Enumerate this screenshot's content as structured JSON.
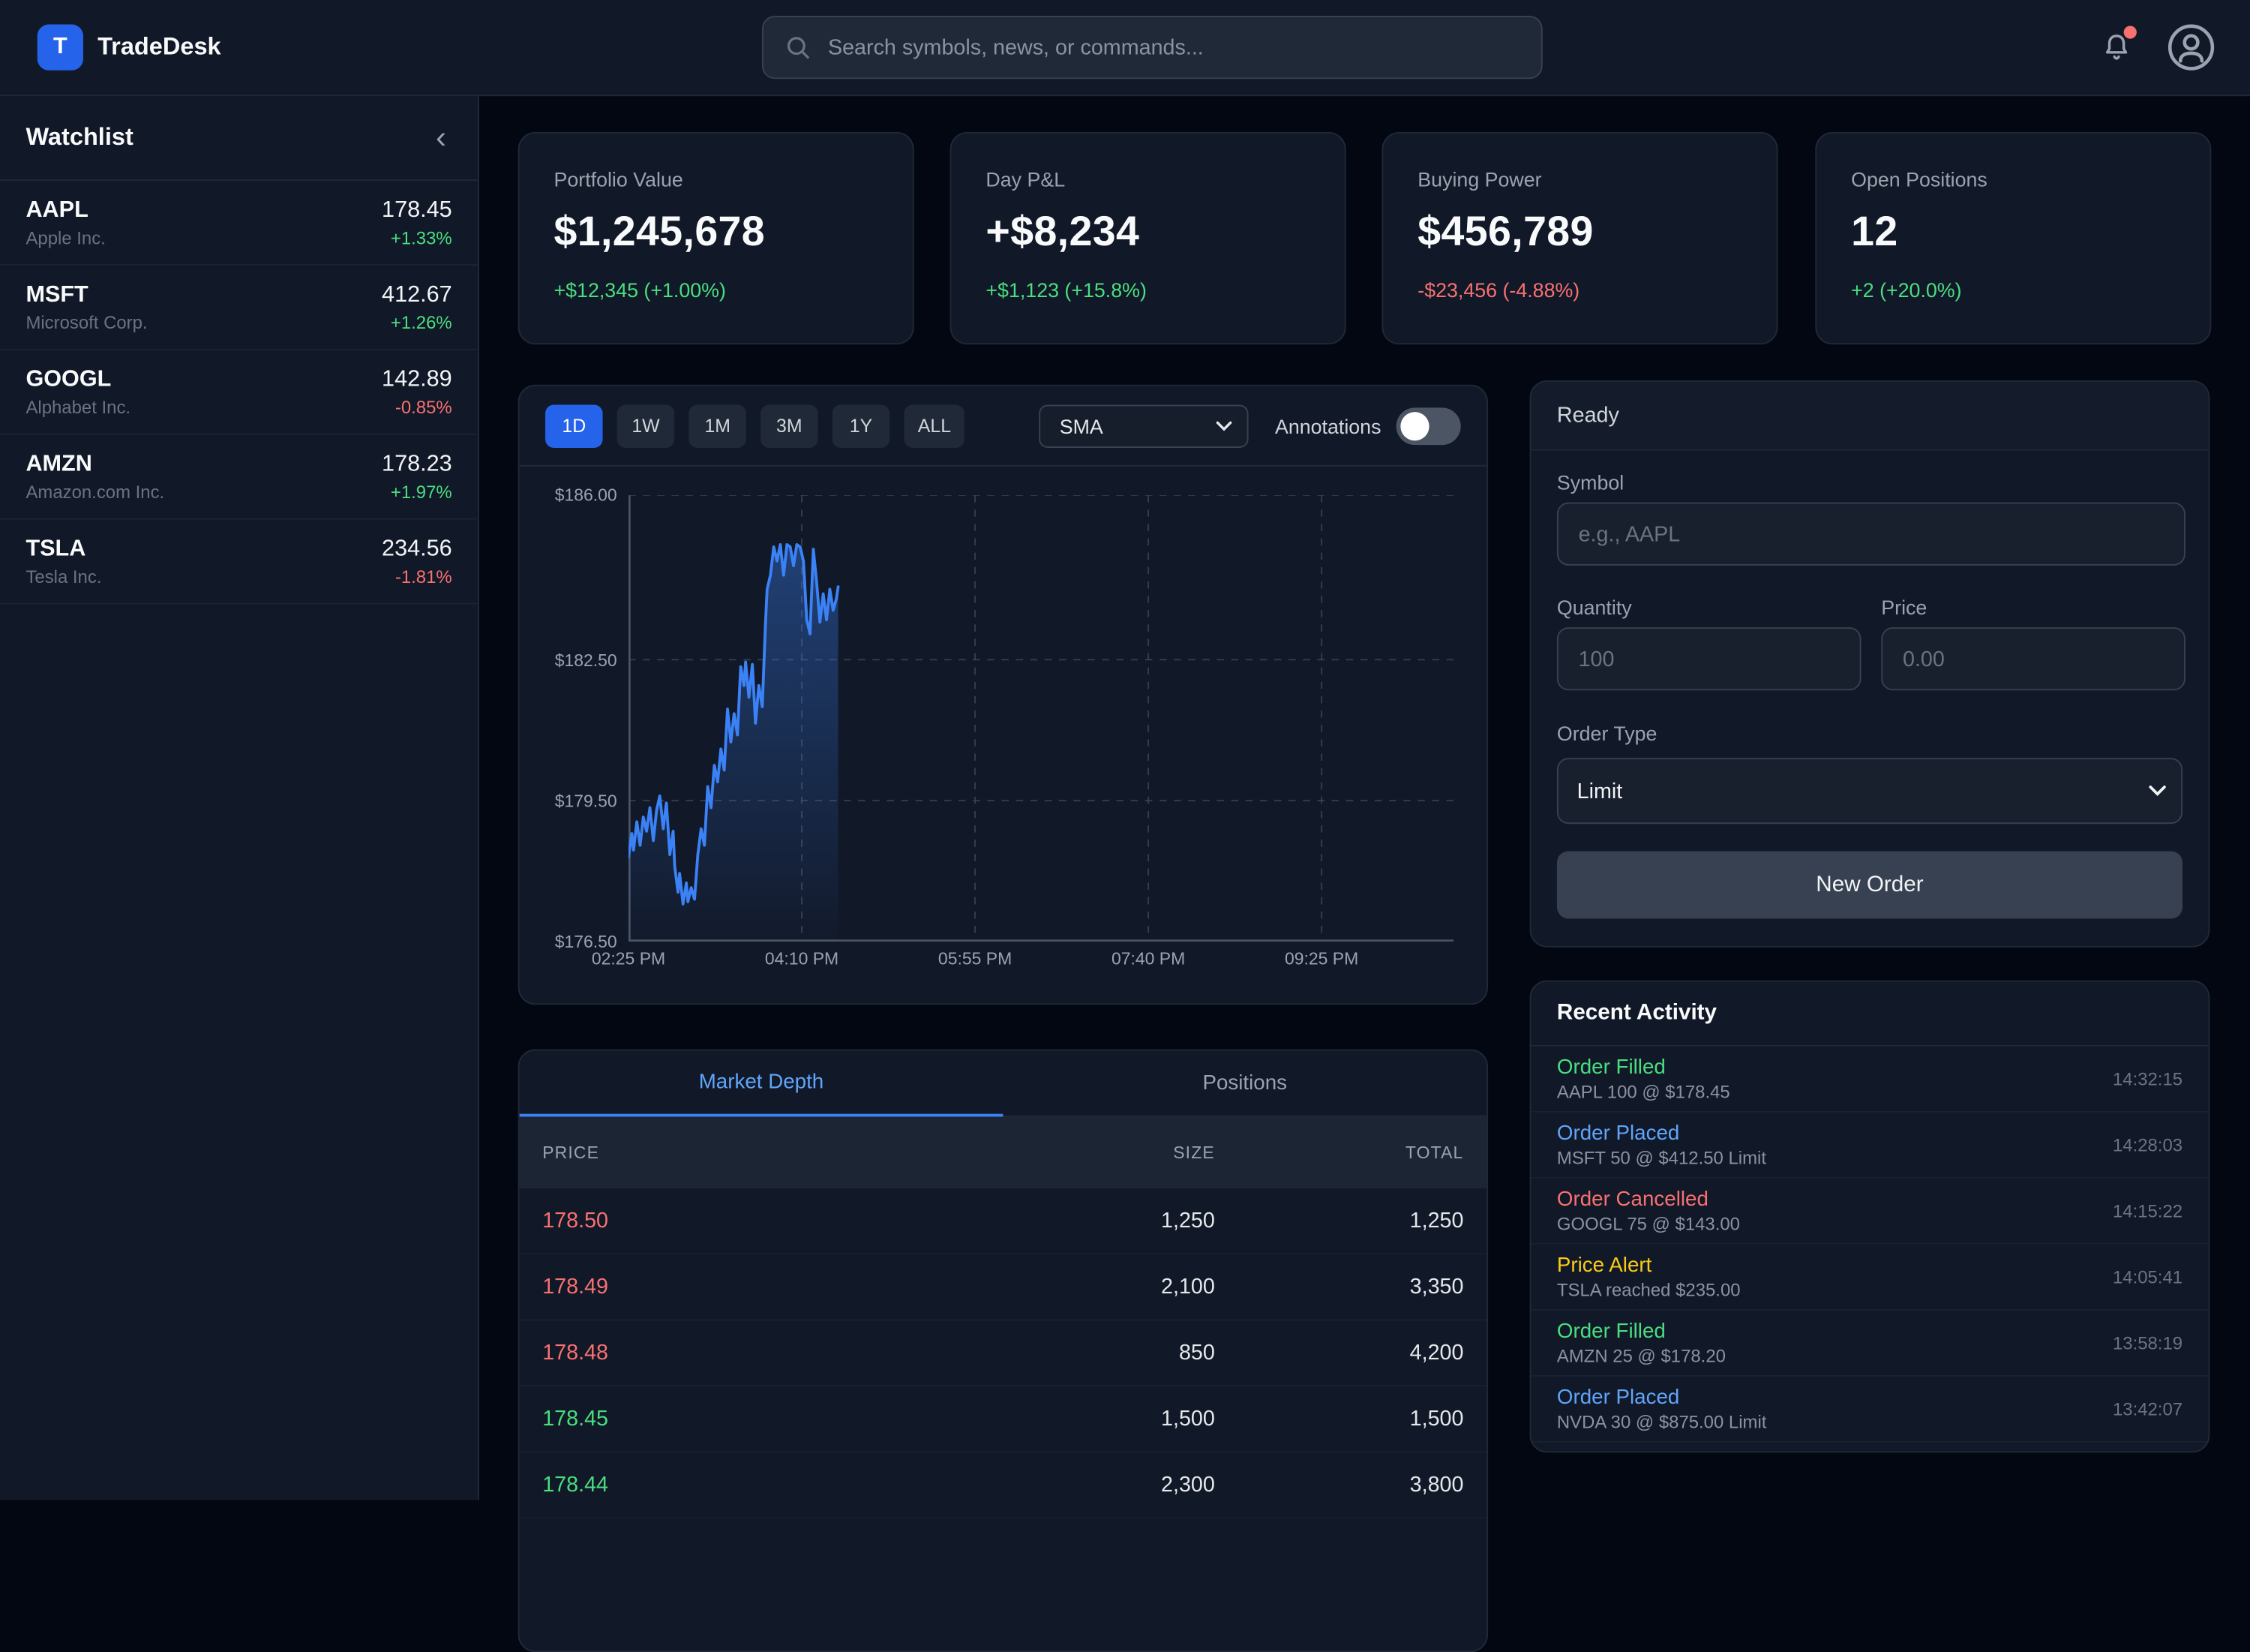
{
  "topbar": {
    "logo_letter": "T",
    "app_name": "TradeDesk",
    "search_placeholder": "Search symbols, news, or commands...",
    "notification_badge": true
  },
  "sidebar": {
    "title": "Watchlist",
    "collapse_icon": "‹",
    "items": [
      {
        "symbol": "AAPL",
        "company": "Apple Inc.",
        "price": "178.45",
        "change": "+1.33%",
        "direction": "up"
      },
      {
        "symbol": "MSFT",
        "company": "Microsoft Corp.",
        "price": "412.67",
        "change": "+1.26%",
        "direction": "up"
      },
      {
        "symbol": "GOOGL",
        "company": "Alphabet Inc.",
        "price": "142.89",
        "change": "-0.85%",
        "direction": "down"
      },
      {
        "symbol": "AMZN",
        "company": "Amazon.com Inc.",
        "price": "178.23",
        "change": "+1.97%",
        "direction": "up"
      },
      {
        "symbol": "TSLA",
        "company": "Tesla Inc.",
        "price": "234.56",
        "change": "-1.81%",
        "direction": "down"
      }
    ]
  },
  "stats": [
    {
      "label": "Portfolio Value",
      "value": "$1,245,678",
      "change": "+$12,345 (+1.00%)",
      "direction": "up"
    },
    {
      "label": "Day P&L",
      "value": "+$8,234",
      "change": "+$1,123 (+15.8%)",
      "direction": "up"
    },
    {
      "label": "Buying Power",
      "value": "$456,789",
      "change": "-$23,456 (-4.88%)",
      "direction": "down"
    },
    {
      "label": "Open Positions",
      "value": "12",
      "change": "+2 (+20.0%)",
      "direction": "up"
    }
  ],
  "chart_panel": {
    "timeframes": [
      "1D",
      "1W",
      "1M",
      "3M",
      "1Y",
      "ALL"
    ],
    "active_timeframe": "1D",
    "indicator": "SMA",
    "annotations_label": "Annotations",
    "annotations_enabled": false
  },
  "chart_data": {
    "type": "line",
    "title": "",
    "xlabel": "",
    "ylabel": "",
    "legend": false,
    "grid": true,
    "y_min": 176.5,
    "y_max": 186.0,
    "y_ticks": [
      {
        "value": 186.0,
        "label": "$186.00"
      },
      {
        "value": 182.5,
        "label": "$182.50"
      },
      {
        "value": 179.5,
        "label": "$179.50"
      },
      {
        "value": 176.5,
        "label": "$176.50"
      }
    ],
    "x_span_minutes": 500,
    "x_ticks": [
      {
        "minute": 0,
        "label": "02:25 PM"
      },
      {
        "minute": 105,
        "label": "04:10 PM"
      },
      {
        "minute": 210,
        "label": "05:55 PM"
      },
      {
        "minute": 315,
        "label": "07:40 PM"
      },
      {
        "minute": 420,
        "label": "09:25 PM"
      }
    ],
    "series": [
      {
        "name": "price",
        "color": "#3b82f6",
        "points": [
          [
            0,
            178.3
          ],
          [
            2,
            178.8
          ],
          [
            3,
            178.45
          ],
          [
            5,
            179.05
          ],
          [
            7,
            178.55
          ],
          [
            9,
            179.15
          ],
          [
            11,
            178.85
          ],
          [
            13,
            179.35
          ],
          [
            15,
            178.65
          ],
          [
            17,
            179.3
          ],
          [
            19,
            179.6
          ],
          [
            21,
            178.9
          ],
          [
            23,
            179.45
          ],
          [
            25,
            178.35
          ],
          [
            27,
            178.85
          ],
          [
            28,
            178.1
          ],
          [
            30,
            177.55
          ],
          [
            31,
            177.95
          ],
          [
            33,
            177.3
          ],
          [
            35,
            177.75
          ],
          [
            36,
            177.35
          ],
          [
            38,
            177.65
          ],
          [
            40,
            177.4
          ],
          [
            42,
            178.35
          ],
          [
            44,
            178.9
          ],
          [
            46,
            178.55
          ],
          [
            48,
            179.8
          ],
          [
            50,
            179.35
          ],
          [
            52,
            180.25
          ],
          [
            54,
            179.9
          ],
          [
            56,
            180.6
          ],
          [
            58,
            180.15
          ],
          [
            60,
            181.45
          ],
          [
            62,
            180.75
          ],
          [
            64,
            181.35
          ],
          [
            66,
            180.9
          ],
          [
            68,
            182.35
          ],
          [
            70,
            181.95
          ],
          [
            71,
            182.45
          ],
          [
            73,
            181.7
          ],
          [
            75,
            182.4
          ],
          [
            77,
            181.15
          ],
          [
            79,
            181.95
          ],
          [
            81,
            181.5
          ],
          [
            83,
            183.3
          ],
          [
            84,
            184.0
          ],
          [
            86,
            184.3
          ],
          [
            88,
            184.9
          ],
          [
            90,
            184.6
          ],
          [
            92,
            184.95
          ],
          [
            94,
            184.3
          ],
          [
            96,
            184.95
          ],
          [
            98,
            184.9
          ],
          [
            100,
            184.5
          ],
          [
            102,
            184.95
          ],
          [
            104,
            184.9
          ],
          [
            106,
            184.6
          ],
          [
            108,
            183.35
          ],
          [
            110,
            183.05
          ],
          [
            112,
            184.85
          ],
          [
            114,
            184.15
          ],
          [
            116,
            183.3
          ],
          [
            118,
            183.9
          ],
          [
            120,
            183.35
          ],
          [
            122,
            184.0
          ],
          [
            124,
            183.55
          ],
          [
            126,
            183.8
          ],
          [
            127,
            184.05
          ]
        ]
      }
    ]
  },
  "depth_panel": {
    "tabs": [
      "Market Depth",
      "Positions"
    ],
    "active_tab": "Market Depth",
    "columns": [
      "PRICE",
      "SIZE",
      "TOTAL"
    ],
    "rows": [
      {
        "price": "178.50",
        "size": "1,250",
        "total": "1,250",
        "side": "ask"
      },
      {
        "price": "178.49",
        "size": "2,100",
        "total": "3,350",
        "side": "ask"
      },
      {
        "price": "178.48",
        "size": "850",
        "total": "4,200",
        "side": "ask"
      },
      {
        "price": "178.45",
        "size": "1,500",
        "total": "1,500",
        "side": "bid"
      },
      {
        "price": "178.44",
        "size": "2,300",
        "total": "3,800",
        "side": "bid"
      }
    ]
  },
  "order_panel": {
    "status": "Ready",
    "symbol_label": "Symbol",
    "symbol_placeholder": "e.g., AAPL",
    "quantity_label": "Quantity",
    "quantity_placeholder": "100",
    "price_label": "Price",
    "price_placeholder": "0.00",
    "order_type_label": "Order Type",
    "order_type_value": "Limit",
    "submit_label": "New Order"
  },
  "activity_panel": {
    "title": "Recent Activity",
    "items": [
      {
        "status": "Order Filled",
        "kind": "filled",
        "detail": "AAPL 100 @ $178.45",
        "time": "14:32:15"
      },
      {
        "status": "Order Placed",
        "kind": "placed",
        "detail": "MSFT 50 @ $412.50 Limit",
        "time": "14:28:03"
      },
      {
        "status": "Order Cancelled",
        "kind": "cancelled",
        "detail": "GOOGL 75 @ $143.00",
        "time": "14:15:22"
      },
      {
        "status": "Price Alert",
        "kind": "alert",
        "detail": "TSLA reached $235.00",
        "time": "14:05:41"
      },
      {
        "status": "Order Filled",
        "kind": "filled",
        "detail": "AMZN 25 @ $178.20",
        "time": "13:58:19"
      },
      {
        "status": "Order Placed",
        "kind": "placed",
        "detail": "NVDA 30 @ $875.00 Limit",
        "time": "13:42:07"
      }
    ]
  },
  "colors": {
    "accent_blue": "#3b82f6",
    "active_button_blue": "#2563eb",
    "positive_green": "#4ade80",
    "negative_red": "#f87171",
    "alert_yellow": "#facc15",
    "panel_bg": "#111827",
    "page_bg": "#030712"
  }
}
